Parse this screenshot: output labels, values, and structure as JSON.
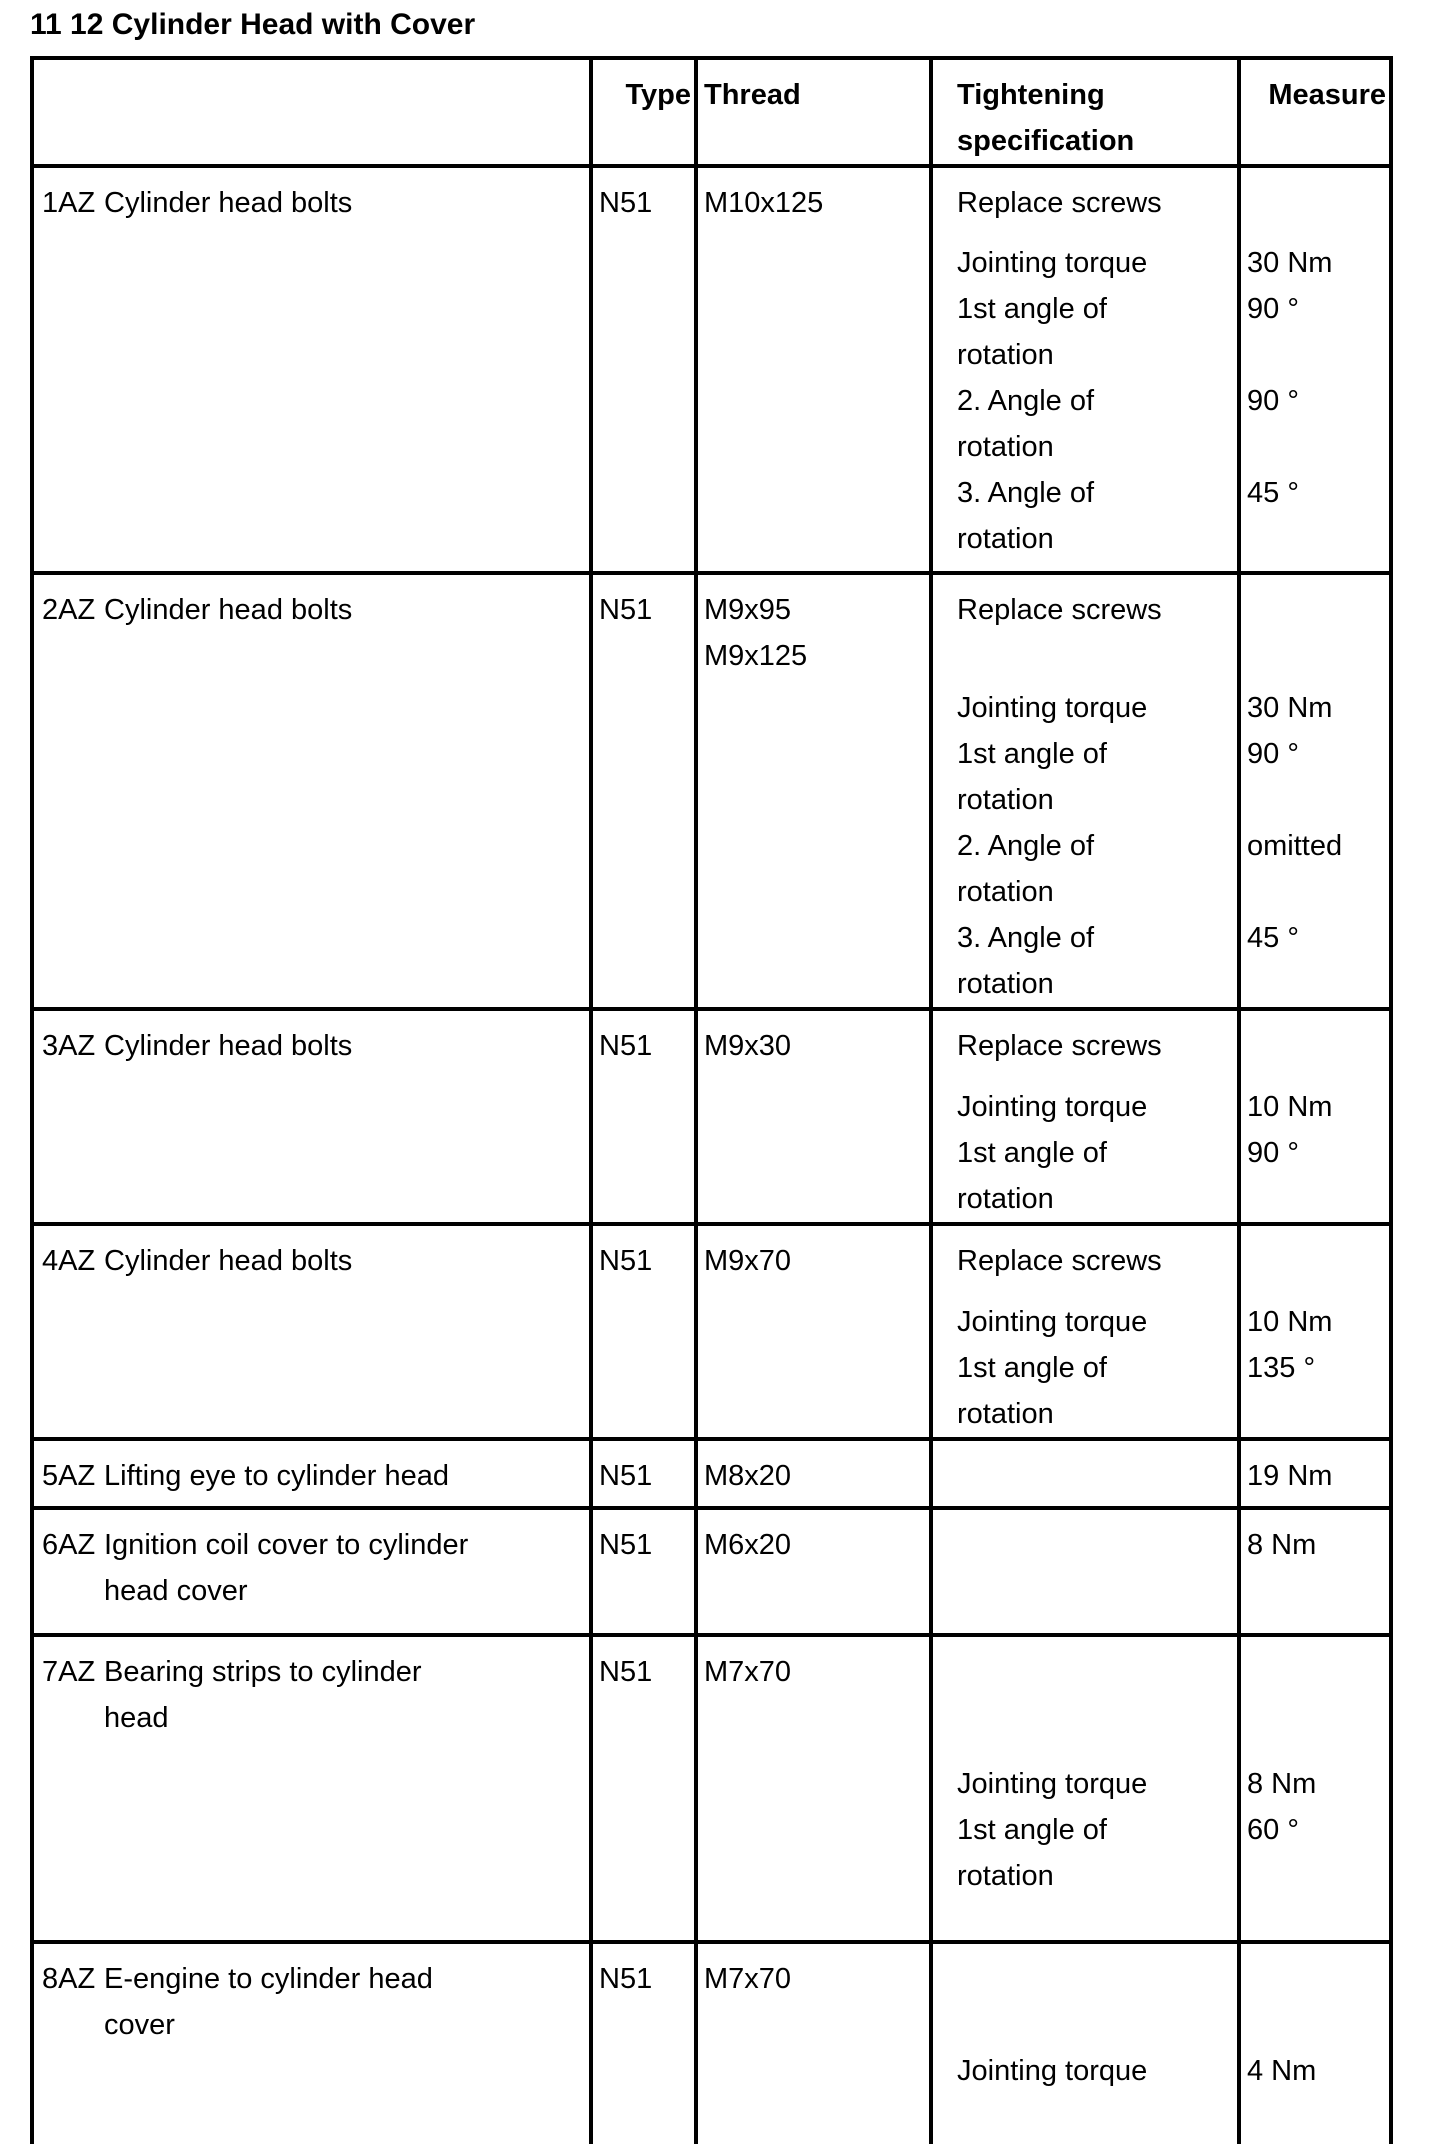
{
  "title": "11 12 Cylinder Head with Cover",
  "table": {
    "headers": {
      "type": "Type",
      "thread": "Thread",
      "tightening": [
        "Tightening",
        "specification"
      ],
      "measure": "Measure"
    },
    "rows": [
      {
        "code": "1AZ",
        "label_lines": [
          "Cylinder head bolts"
        ],
        "type": "N51",
        "thread_lines": [
          "M10x125"
        ],
        "items": [
          {
            "spec_lines": [
              "Replace screws"
            ],
            "measure": ""
          },
          {
            "spacer": 14
          },
          {
            "spec_lines": [
              "Jointing torque"
            ],
            "measure": "30 Nm"
          },
          {
            "spec_lines": [
              "1st angle of",
              "rotation"
            ],
            "measure": "90 °"
          },
          {
            "spec_lines": [
              "2. Angle of",
              "rotation"
            ],
            "measure": "90 °"
          },
          {
            "spec_lines": [
              "3. Angle of",
              "rotation"
            ],
            "measure": "45 °"
          }
        ]
      },
      {
        "code": "2AZ",
        "label_lines": [
          "Cylinder head bolts"
        ],
        "type": "N51",
        "thread_lines": [
          "M9x95",
          "M9x125"
        ],
        "items": [
          {
            "spec_lines": [
              "Replace screws"
            ],
            "measure": ""
          },
          {
            "spacer": 52
          },
          {
            "spec_lines": [
              "Jointing torque"
            ],
            "measure": "30 Nm"
          },
          {
            "spec_lines": [
              "1st angle of",
              "rotation"
            ],
            "measure": "90 °"
          },
          {
            "spec_lines": [
              "2. Angle of",
              "rotation"
            ],
            "measure": "omitted"
          },
          {
            "spec_lines": [
              "3. Angle of",
              "rotation"
            ],
            "measure": "45 °"
          }
        ]
      },
      {
        "code": "3AZ",
        "label_lines": [
          "Cylinder head bolts"
        ],
        "type": "N51",
        "thread_lines": [
          "M9x30"
        ],
        "items": [
          {
            "spec_lines": [
              "Replace screws"
            ],
            "measure": ""
          },
          {
            "spacer": 15
          },
          {
            "spec_lines": [
              "Jointing torque"
            ],
            "measure": "10 Nm"
          },
          {
            "spec_lines": [
              "1st angle of",
              "rotation"
            ],
            "measure": "90 °"
          }
        ]
      },
      {
        "code": "4AZ",
        "label_lines": [
          "Cylinder head bolts"
        ],
        "type": "N51",
        "thread_lines": [
          "M9x70"
        ],
        "items": [
          {
            "spec_lines": [
              "Replace screws"
            ],
            "measure": ""
          },
          {
            "spacer": 15
          },
          {
            "spec_lines": [
              "Jointing torque"
            ],
            "measure": "10 Nm"
          },
          {
            "spec_lines": [
              "1st angle of",
              "rotation"
            ],
            "measure": "135 °"
          }
        ]
      },
      {
        "code": "5AZ",
        "label_lines": [
          "Lifting eye to cylinder head"
        ],
        "type": "N51",
        "thread_lines": [
          "M8x20"
        ],
        "items": [
          {
            "spec_lines": [],
            "measure": "19 Nm"
          }
        ]
      },
      {
        "code": "6AZ",
        "label_lines": [
          "Ignition coil cover to cylinder",
          "head cover"
        ],
        "type": "N51",
        "thread_lines": [
          "M6x20"
        ],
        "items": [
          {
            "spec_lines": [],
            "measure": "8 Nm"
          }
        ]
      },
      {
        "code": "7AZ",
        "label_lines": [
          "Bearing strips to cylinder",
          "head"
        ],
        "type": "N51",
        "thread_lines": [
          "M7x70"
        ],
        "items": [
          {
            "spacer": 112
          },
          {
            "spec_lines": [
              "Jointing torque"
            ],
            "measure": "8 Nm"
          },
          {
            "spec_lines": [
              "1st angle of",
              "rotation"
            ],
            "measure": "60 °"
          }
        ]
      },
      {
        "code": "8AZ",
        "label_lines": [
          "E-engine to cylinder head",
          "cover"
        ],
        "type": "N51",
        "thread_lines": [
          "M7x70"
        ],
        "items": [
          {
            "spacer": 92
          },
          {
            "spec_lines": [
              "Jointing torque"
            ],
            "measure": "4 Nm"
          }
        ]
      }
    ]
  }
}
